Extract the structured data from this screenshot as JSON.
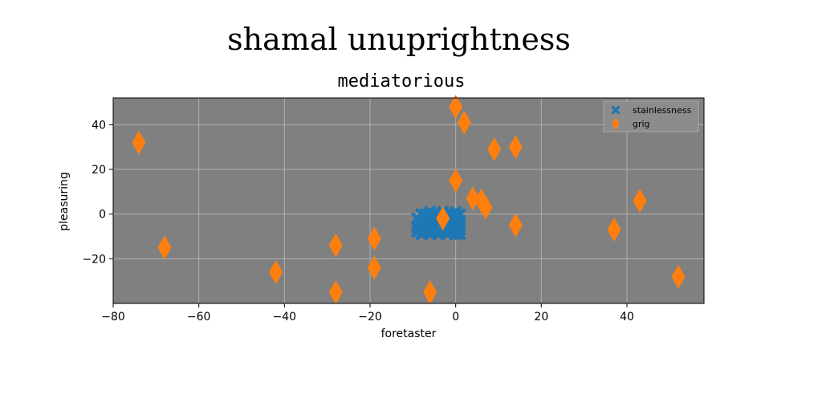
{
  "chart_data": {
    "type": "scatter",
    "suptitle": "shamal unuprightness",
    "title": "mediatorious",
    "xlabel": "foretaster",
    "ylabel": "pleasuring",
    "xlim": [
      -80,
      58
    ],
    "ylim": [
      -40,
      52
    ],
    "xticks": [
      -80,
      -60,
      -40,
      -20,
      0,
      20,
      40
    ],
    "yticks": [
      -20,
      0,
      20,
      40
    ],
    "grid": true,
    "legend_position": "top-right",
    "colors": {
      "plot_bg": "#808080",
      "grid": "#b0b0b0"
    },
    "series": [
      {
        "name": "stainlessness",
        "marker": "x-filled",
        "color": "#1f77b4",
        "points": [
          [
            -8,
            -3
          ],
          [
            -7,
            -3
          ],
          [
            -6,
            -3
          ],
          [
            -5,
            -3
          ],
          [
            -4,
            -3
          ],
          [
            -3,
            -3
          ],
          [
            -2,
            -3
          ],
          [
            -1,
            -3
          ],
          [
            0,
            -3
          ],
          [
            1,
            -3
          ],
          [
            -8,
            0
          ],
          [
            -7,
            0
          ],
          [
            -6,
            0
          ],
          [
            -5,
            0
          ],
          [
            -4,
            0
          ],
          [
            -3,
            0
          ],
          [
            -2,
            0
          ],
          [
            -1,
            0
          ],
          [
            0,
            0
          ],
          [
            1,
            0
          ],
          [
            -8,
            -5
          ],
          [
            -7,
            -5
          ],
          [
            -6,
            -5
          ],
          [
            -5,
            -5
          ],
          [
            -4,
            -5
          ],
          [
            -3,
            -5
          ],
          [
            -2,
            -5
          ],
          [
            -1,
            -5
          ],
          [
            0,
            -5
          ],
          [
            1,
            -5
          ],
          [
            -8,
            -7
          ],
          [
            -7,
            -7
          ],
          [
            -6,
            -7
          ],
          [
            -5,
            -7
          ],
          [
            -4,
            -7
          ],
          [
            -3,
            -7
          ],
          [
            -2,
            -7
          ],
          [
            -1,
            -7
          ],
          [
            0,
            -7
          ],
          [
            1,
            -7
          ],
          [
            -8,
            -9
          ],
          [
            -6,
            -9
          ],
          [
            -4,
            -9
          ],
          [
            -2,
            -9
          ],
          [
            0,
            -9
          ],
          [
            1,
            -9
          ],
          [
            -9,
            -2
          ],
          [
            -9,
            -6
          ],
          [
            -9,
            -8
          ],
          [
            0,
            1
          ],
          [
            -3,
            1
          ],
          [
            -6,
            1
          ]
        ]
      },
      {
        "name": "grig",
        "marker": "thin-diamond",
        "color": "#ff7f0e",
        "points": [
          [
            -74,
            32
          ],
          [
            -68,
            -15
          ],
          [
            -42,
            -26
          ],
          [
            -28,
            -14
          ],
          [
            -28,
            -35
          ],
          [
            -19,
            -11
          ],
          [
            -19,
            -24
          ],
          [
            -6,
            -35
          ],
          [
            -3,
            -2
          ],
          [
            0,
            48
          ],
          [
            0,
            15
          ],
          [
            2,
            41
          ],
          [
            4,
            7
          ],
          [
            6,
            6
          ],
          [
            7,
            3
          ],
          [
            9,
            29
          ],
          [
            14,
            30
          ],
          [
            14,
            -5
          ],
          [
            37,
            -7
          ],
          [
            43,
            6
          ],
          [
            52,
            -28
          ]
        ]
      }
    ]
  }
}
